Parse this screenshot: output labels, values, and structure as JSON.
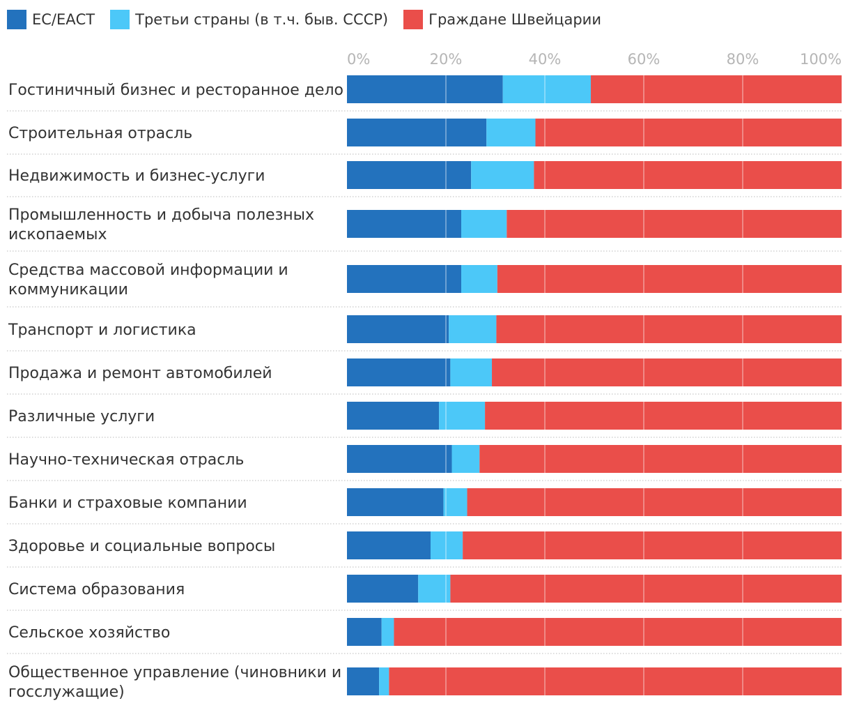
{
  "chart_data": {
    "type": "bar",
    "stacked": true,
    "orientation": "horizontal",
    "percent": true,
    "xlim": [
      0,
      100
    ],
    "ticks": [
      "0%",
      "20%",
      "40%",
      "60%",
      "80%",
      "100%"
    ],
    "grid": true,
    "legend_position": "top-left",
    "categories": [
      "Гостиничный бизнес и ресторанное дело",
      "Строительная отрасль",
      "Недвижимость и бизнес-услуги",
      "Промышленность и добыча полезных ископаемых",
      "Средства массовой информации и коммуникации",
      "Транспорт и логистика",
      "Продажа и ремонт автомобилей",
      "Различные услуги",
      "Научно-техническая отрасль",
      "Банки и страховые компании",
      "Здоровье и социальные вопросы",
      "Система образования",
      "Сельское хозяйство",
      "Общественное управление (чиновники и госслужащие)"
    ],
    "series": [
      {
        "name": "ЕС/ЕАСТ",
        "color": "#2372bd",
        "values": [
          31.5,
          28.2,
          25.1,
          23.1,
          23.1,
          20.6,
          20.9,
          18.6,
          21.2,
          19.5,
          16.9,
          14.4,
          7.0,
          6.5
        ]
      },
      {
        "name": "Третьи страны (в т.ч. быв. СССР)",
        "color": "#4cc8f8",
        "values": [
          17.8,
          9.9,
          12.7,
          9.2,
          7.3,
          9.6,
          8.4,
          9.3,
          5.6,
          4.8,
          6.5,
          6.5,
          2.5,
          2.0
        ]
      },
      {
        "name": "Граждане Швейцарии",
        "color": "#ea4e4a",
        "values": [
          50.7,
          61.9,
          62.2,
          67.7,
          69.6,
          69.8,
          70.7,
          72.1,
          73.2,
          75.7,
          76.6,
          79.1,
          90.5,
          91.5
        ]
      }
    ]
  }
}
